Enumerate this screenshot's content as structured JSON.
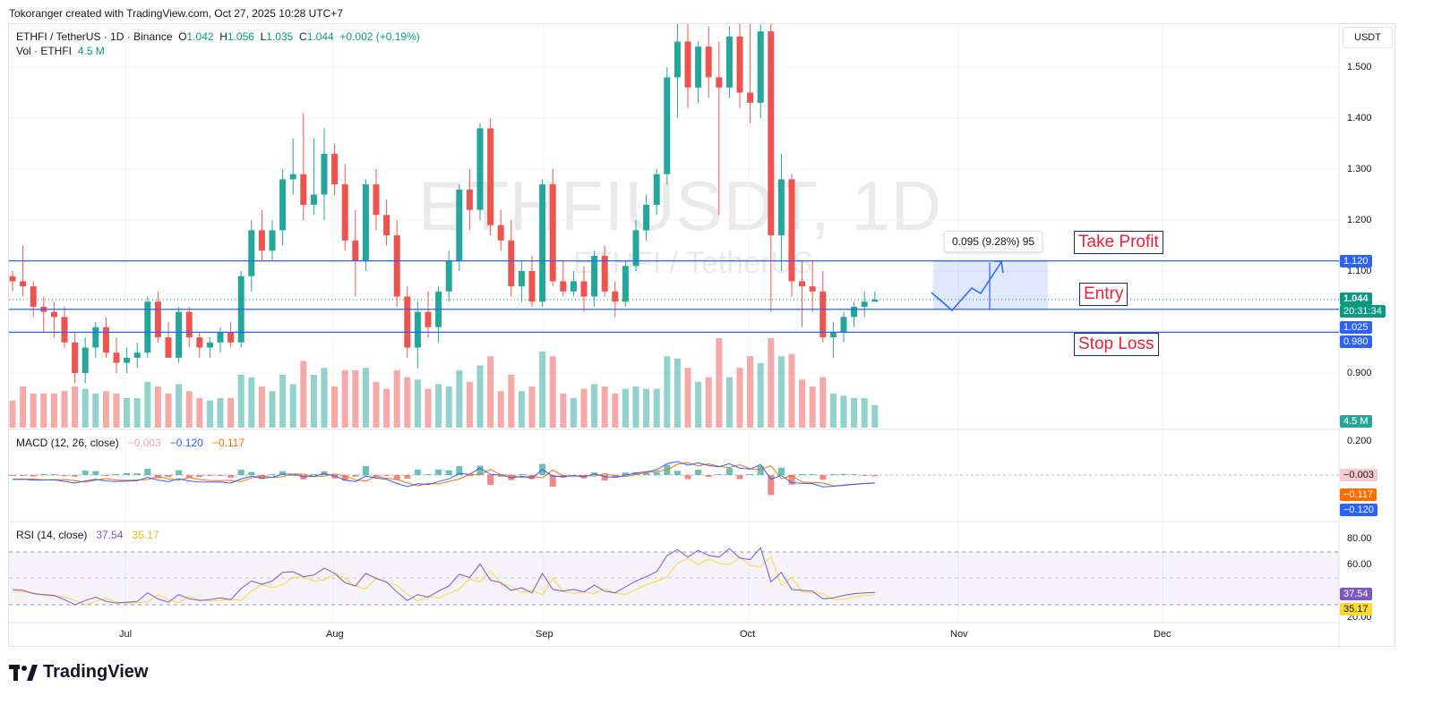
{
  "caption": "Tokoranger created with TradingView.com, Oct 27, 2025 10:28 UTC+7",
  "legend": {
    "symbol": "ETHFI / TetherUS · 1D · Binance",
    "o_label": "O",
    "o_val": "1.042",
    "h_label": "H",
    "h_val": "1.056",
    "l_label": "L",
    "l_val": "1.035",
    "c_label": "C",
    "c_val": "1.044",
    "change": "+0.002 (+0.19%)",
    "vol_label": "Vol · ETHFI",
    "vol_val": "4.5 M"
  },
  "macd_legend": {
    "label": "MACD (12, 26, close)",
    "hist": "−0.003",
    "macd": "−0.120",
    "signal": "−0.117"
  },
  "rsi_legend": {
    "label": "RSI (14, close)",
    "rsi": "37.54",
    "ma": "35.17"
  },
  "currency_button": "USDT",
  "watermark": {
    "big": "ETHFIUSDT, 1D",
    "small": "ETHFI / TetherUS"
  },
  "annotations": {
    "take_profit": "Take Profit",
    "entry": "Entry",
    "stop_loss": "Stop Loss",
    "measure": "0.095 (9.28%) 95"
  },
  "price_axis": [
    "1.500",
    "1.400",
    "1.300",
    "1.200",
    "1.100",
    "0.900"
  ],
  "price_tags": {
    "take_profit": "1.120",
    "current": "1.044",
    "countdown": "20:31:34",
    "entry": "1.025",
    "stop": "0.980",
    "volume": "4.5 M"
  },
  "macd_axis": [
    "0.200"
  ],
  "macd_tags": {
    "hist": "−0.003",
    "signal": "−0.117",
    "macd": "−0.120"
  },
  "rsi_axis": [
    "80.00",
    "60.00",
    "20.00"
  ],
  "rsi_tags": {
    "rsi": "37.54",
    "ma": "35.17"
  },
  "time_axis": [
    "Jul",
    "Aug",
    "Sep",
    "Oct",
    "Nov",
    "Dec"
  ],
  "brand": "TradingView",
  "colors": {
    "up": "#26a69a",
    "down": "#ef5350",
    "level_line": "#2962ff",
    "macd": "#2962ff",
    "signal": "#ff6d00",
    "rsi": "#7e57c2",
    "rsi_ma": "#fdd835"
  },
  "chart_data": {
    "type": "candlestick",
    "symbol": "ETHFI / TetherUS",
    "interval": "1D",
    "levels": {
      "take_profit": 1.12,
      "entry": 1.025,
      "stop_loss": 0.98,
      "current": 1.044
    },
    "candles": [
      [
        1.09,
        1.1,
        1.06,
        1.08
      ],
      [
        1.08,
        1.15,
        1.05,
        1.07
      ],
      [
        1.07,
        1.08,
        1.01,
        1.03
      ],
      [
        1.03,
        1.05,
        0.98,
        1.02
      ],
      [
        1.02,
        1.04,
        0.97,
        1.01
      ],
      [
        1.01,
        1.03,
        0.95,
        0.96
      ],
      [
        0.96,
        0.98,
        0.88,
        0.9
      ],
      [
        0.9,
        0.97,
        0.88,
        0.95
      ],
      [
        0.95,
        1.0,
        0.93,
        0.99
      ],
      [
        0.99,
        1.01,
        0.93,
        0.94
      ],
      [
        0.94,
        0.97,
        0.9,
        0.92
      ],
      [
        0.92,
        0.95,
        0.9,
        0.93
      ],
      [
        0.93,
        0.96,
        0.91,
        0.94
      ],
      [
        0.94,
        1.05,
        0.93,
        1.04
      ],
      [
        1.04,
        1.06,
        0.96,
        0.97
      ],
      [
        0.97,
        1.0,
        0.93,
        0.93
      ],
      [
        0.93,
        1.03,
        0.92,
        1.02
      ],
      [
        1.02,
        1.03,
        0.95,
        0.97
      ],
      [
        0.97,
        0.98,
        0.93,
        0.95
      ],
      [
        0.95,
        0.97,
        0.93,
        0.96
      ],
      [
        0.96,
        0.99,
        0.94,
        0.98
      ],
      [
        0.98,
        1.0,
        0.95,
        0.96
      ],
      [
        0.96,
        1.1,
        0.95,
        1.09
      ],
      [
        1.09,
        1.2,
        1.06,
        1.18
      ],
      [
        1.18,
        1.22,
        1.12,
        1.14
      ],
      [
        1.14,
        1.2,
        1.12,
        1.18
      ],
      [
        1.18,
        1.3,
        1.15,
        1.28
      ],
      [
        1.28,
        1.36,
        1.25,
        1.29
      ],
      [
        1.29,
        1.41,
        1.2,
        1.23
      ],
      [
        1.23,
        1.36,
        1.21,
        1.25
      ],
      [
        1.25,
        1.38,
        1.2,
        1.33
      ],
      [
        1.33,
        1.35,
        1.25,
        1.27
      ],
      [
        1.27,
        1.31,
        1.14,
        1.16
      ],
      [
        1.16,
        1.22,
        1.05,
        1.12
      ],
      [
        1.12,
        1.28,
        1.1,
        1.27
      ],
      [
        1.27,
        1.3,
        1.18,
        1.21
      ],
      [
        1.21,
        1.24,
        1.15,
        1.17
      ],
      [
        1.17,
        1.2,
        1.03,
        1.05
      ],
      [
        1.05,
        1.07,
        0.93,
        0.95
      ],
      [
        0.95,
        1.04,
        0.91,
        1.02
      ],
      [
        1.02,
        1.06,
        0.97,
        0.99
      ],
      [
        0.99,
        1.07,
        0.96,
        1.06
      ],
      [
        1.06,
        1.14,
        1.04,
        1.12
      ],
      [
        1.12,
        1.27,
        1.1,
        1.26
      ],
      [
        1.26,
        1.3,
        1.18,
        1.22
      ],
      [
        1.22,
        1.39,
        1.2,
        1.38
      ],
      [
        1.38,
        1.4,
        1.17,
        1.19
      ],
      [
        1.19,
        1.22,
        1.14,
        1.16
      ],
      [
        1.16,
        1.2,
        1.05,
        1.07
      ],
      [
        1.07,
        1.12,
        1.04,
        1.1
      ],
      [
        1.1,
        1.13,
        1.03,
        1.04
      ],
      [
        1.04,
        1.28,
        1.03,
        1.27
      ],
      [
        1.27,
        1.3,
        1.07,
        1.08
      ],
      [
        1.08,
        1.12,
        1.05,
        1.06
      ],
      [
        1.06,
        1.1,
        1.05,
        1.08
      ],
      [
        1.08,
        1.11,
        1.02,
        1.05
      ],
      [
        1.05,
        1.14,
        1.03,
        1.13
      ],
      [
        1.13,
        1.15,
        1.05,
        1.06
      ],
      [
        1.06,
        1.08,
        1.01,
        1.04
      ],
      [
        1.04,
        1.12,
        1.03,
        1.11
      ],
      [
        1.11,
        1.2,
        1.1,
        1.18
      ],
      [
        1.18,
        1.25,
        1.16,
        1.23
      ],
      [
        1.23,
        1.3,
        1.21,
        1.29
      ],
      [
        1.29,
        1.5,
        1.27,
        1.48
      ],
      [
        1.48,
        1.62,
        1.4,
        1.55
      ],
      [
        1.55,
        1.6,
        1.42,
        1.46
      ],
      [
        1.46,
        1.55,
        1.43,
        1.54
      ],
      [
        1.54,
        1.58,
        1.44,
        1.48
      ],
      [
        1.48,
        1.55,
        1.21,
        1.46
      ],
      [
        1.46,
        1.58,
        1.44,
        1.56
      ],
      [
        1.56,
        1.6,
        1.42,
        1.45
      ],
      [
        1.45,
        1.62,
        1.39,
        1.43
      ],
      [
        1.43,
        1.6,
        1.4,
        1.57
      ],
      [
        1.57,
        1.6,
        1.02,
        1.17
      ],
      [
        1.17,
        1.33,
        1.1,
        1.28
      ],
      [
        1.28,
        1.29,
        1.05,
        1.08
      ],
      [
        1.08,
        1.12,
        0.99,
        1.07
      ],
      [
        1.07,
        1.12,
        1.02,
        1.06
      ],
      [
        1.06,
        1.1,
        0.96,
        0.97
      ],
      [
        0.97,
        1.0,
        0.93,
        0.98
      ],
      [
        0.98,
        1.02,
        0.96,
        1.01
      ],
      [
        1.01,
        1.04,
        0.99,
        1.03
      ],
      [
        1.03,
        1.06,
        1.01,
        1.04
      ],
      [
        1.04,
        1.06,
        1.04,
        1.044
      ]
    ]
  }
}
